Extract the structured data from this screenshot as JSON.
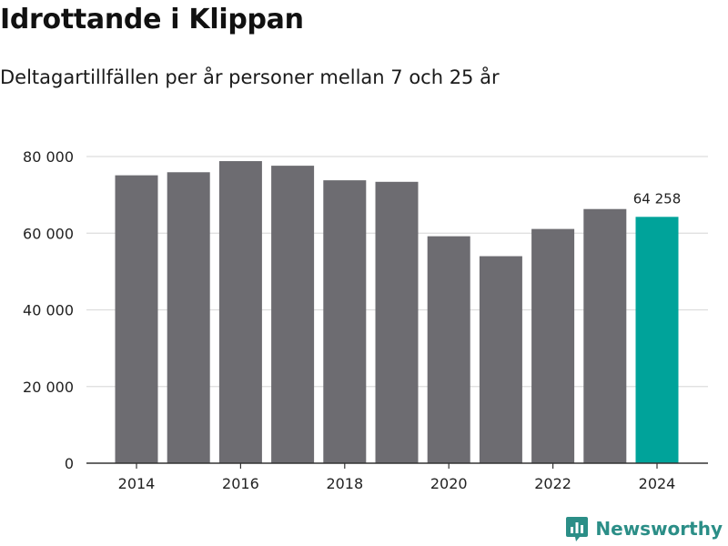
{
  "header": {
    "title": "Idrottande i Klippan",
    "subtitle": "Deltagartillfällen per år personer mellan 7 och 25 år"
  },
  "brand": {
    "name": "Newsworthy",
    "icon": "newsworthy-logo-icon"
  },
  "colors": {
    "bar": "#6d6c71",
    "highlight": "#00a39a",
    "grid": "#dddddd",
    "axis": "#333333",
    "brand": "#2b8e87"
  },
  "chart_data": {
    "type": "bar",
    "title": "Idrottande i Klippan",
    "subtitle": "Deltagartillfällen per år personer mellan 7 och 25 år",
    "xlabel": "",
    "ylabel": "",
    "categories": [
      "2014",
      "2015",
      "2016",
      "2017",
      "2018",
      "2019",
      "2020",
      "2021",
      "2022",
      "2023",
      "2024"
    ],
    "values": [
      75100,
      75900,
      78800,
      77600,
      73800,
      73400,
      59200,
      54000,
      61100,
      66300,
      64258
    ],
    "highlight_index": 10,
    "data_labels": [
      {
        "index": 10,
        "text": "64 258"
      }
    ],
    "ylim": [
      0,
      80000
    ],
    "y_ticks": [
      0,
      20000,
      40000,
      60000,
      80000
    ],
    "y_tick_labels": [
      "0",
      "20 000",
      "40 000",
      "60 000",
      "80 000"
    ],
    "x_tick_labels": [
      "2014",
      "2016",
      "2018",
      "2020",
      "2022",
      "2024"
    ],
    "grid": true
  }
}
